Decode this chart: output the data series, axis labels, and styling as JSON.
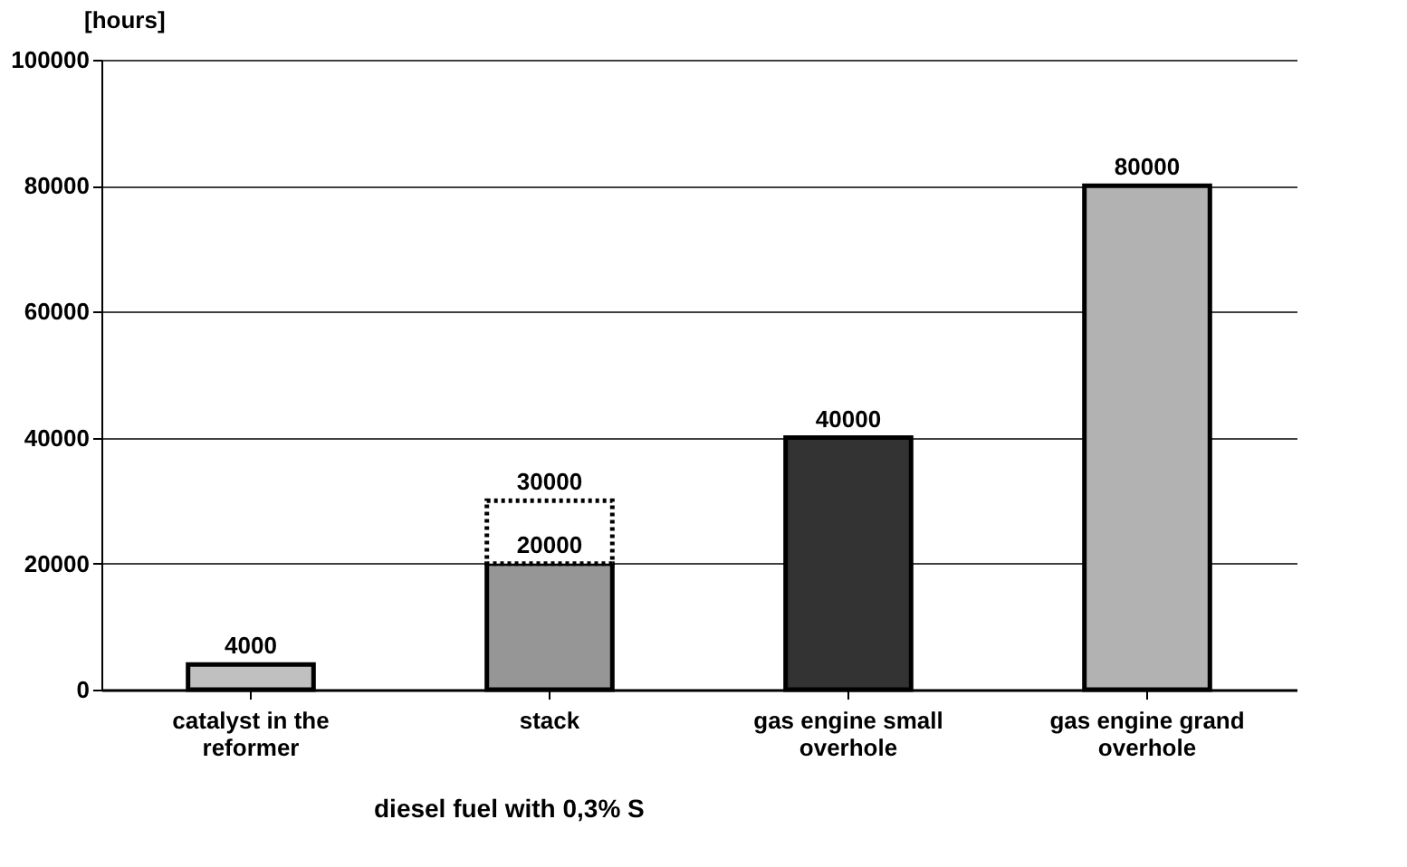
{
  "chart_data": {
    "type": "bar",
    "stacked": true,
    "ylabel": "[hours]",
    "xlabel": "diesel fuel with 0,3% S",
    "categories": [
      "catalyst  in the reformer",
      "stack",
      "gas engine small overhole",
      "gas engine grand overhole"
    ],
    "series": [
      {
        "colors": [
          "#c0c0c0",
          "#969696",
          "#333333",
          "#b2b2b2"
        ],
        "values": [
          4000,
          20000,
          40000,
          80000
        ],
        "value_labels": [
          "4000",
          "20000",
          "40000",
          "80000"
        ]
      },
      {
        "color": "#ffffff",
        "values": [
          null,
          10000,
          null,
          null
        ],
        "line_style": "dotted"
      }
    ],
    "totals": [
      null,
      "30000",
      null,
      null
    ],
    "ylim": [
      0,
      100000
    ],
    "yticks": [
      0,
      20000,
      40000,
      60000,
      80000,
      100000
    ],
    "grid": "y"
  }
}
